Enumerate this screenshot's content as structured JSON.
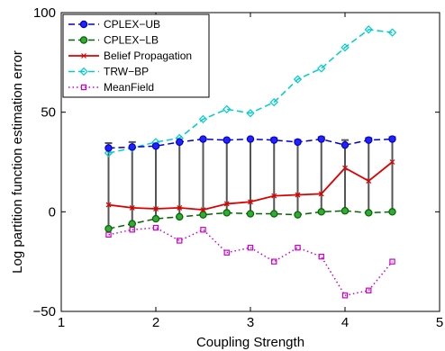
{
  "chart_data": {
    "type": "line",
    "title": "",
    "xlabel": "Coupling Strength",
    "ylabel": "Log partition function estimation error",
    "xlim": [
      1,
      5
    ],
    "ylim": [
      -50,
      100
    ],
    "xticks": [
      "1",
      "2",
      "3",
      "4",
      "5"
    ],
    "yticks": [
      "−50",
      "0",
      "50",
      "100"
    ],
    "grid": false,
    "legend_position": "top-left",
    "x": [
      1.5,
      1.75,
      2.0,
      2.25,
      2.5,
      2.75,
      3.0,
      3.25,
      3.5,
      3.75,
      4.0,
      4.25,
      4.5
    ],
    "series": [
      {
        "name": "CPLEX−UB",
        "color": "#0000cc",
        "values": [
          32,
          32.5,
          33,
          35,
          36.5,
          36,
          36.5,
          36,
          35,
          36.5,
          33.5,
          36,
          36.5
        ]
      },
      {
        "name": "CPLEX−LB",
        "color": "#006600",
        "values": [
          -8.5,
          -6,
          -3.5,
          -2.5,
          -1.5,
          -0.5,
          -1,
          -1,
          -1.5,
          0,
          0.5,
          -0.5,
          0
        ]
      },
      {
        "name": "Belief Propagation",
        "color": "#dd0000",
        "values": [
          3.5,
          2,
          1.5,
          2,
          1,
          4,
          5,
          8,
          8.5,
          9,
          22,
          15.5,
          25
        ],
        "error_low": [
          -8.5,
          -6,
          -3.5,
          -2.5,
          -1.5,
          -0.5,
          -1,
          -1,
          -1.5,
          0,
          0.5,
          -0.5,
          0
        ],
        "error_high": [
          34.5,
          35,
          33.5,
          35,
          36.5,
          36,
          36.5,
          37,
          36,
          37.5,
          36,
          37,
          37.5
        ]
      },
      {
        "name": "TRW−BP",
        "color": "#00cccc",
        "values": [
          29.5,
          32,
          35,
          37,
          46.5,
          51.5,
          49.5,
          55,
          66.5,
          72,
          82.5,
          91.5,
          90
        ]
      },
      {
        "name": "MeanField",
        "color": "#cc00cc",
        "values": [
          -11.5,
          -9,
          -8,
          -14.5,
          -9,
          -20.5,
          -18,
          -25,
          -18,
          -22.5,
          -42,
          -39.5,
          -25
        ]
      }
    ]
  }
}
